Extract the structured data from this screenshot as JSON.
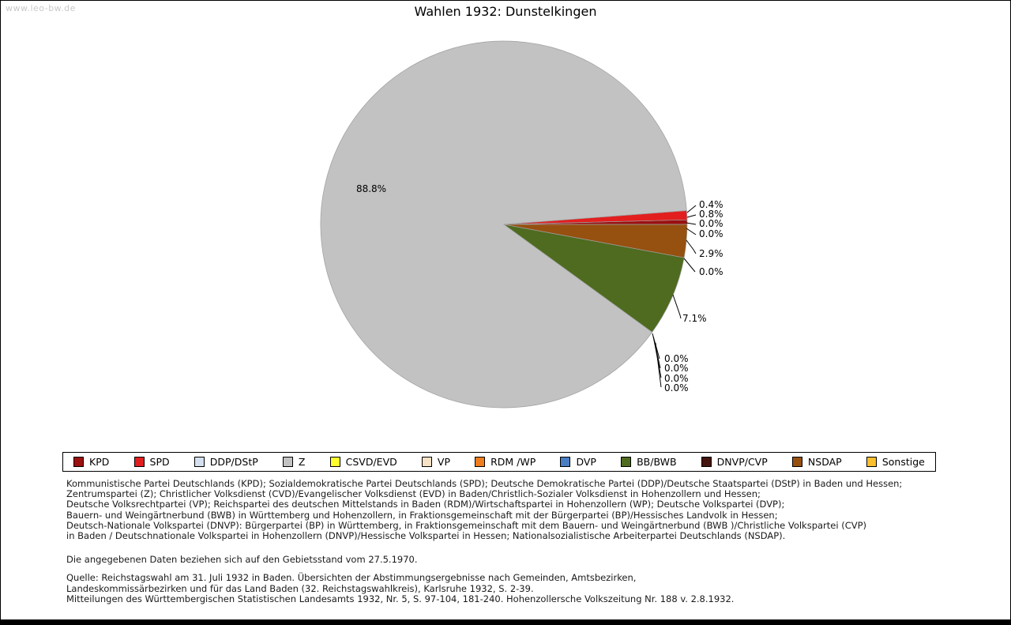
{
  "page": {
    "watermark": "www.leo-bw.de",
    "title": "Wahlen 1932: Dunstelkingen"
  },
  "chart_data": {
    "type": "pie",
    "title": "Wahlen 1932: Dunstelkingen",
    "unit": "percent of votes",
    "direction": "counterclockwise",
    "start_angle_deg": 0,
    "legend_position": "bottom",
    "slices": [
      {
        "party": "KPD",
        "value": 0.4,
        "label": "0.4%",
        "color": "#9b1010"
      },
      {
        "party": "SPD",
        "value": 0.8,
        "label": "0.8%",
        "color": "#e31e1e"
      },
      {
        "party": "DDP/DStP",
        "value": 0.0,
        "label": "0.0%",
        "color": "#d4e0f0"
      },
      {
        "party": "Z",
        "value": 88.8,
        "label": "88.8%",
        "color": "#c2c2c2"
      },
      {
        "party": "CSVD/EVD",
        "value": 0.0,
        "label": "0.0%",
        "color": "#ffff2e"
      },
      {
        "party": "VP",
        "value": 0.0,
        "label": "0.0%",
        "color": "#f8e2c6"
      },
      {
        "party": "RDM /WP",
        "value": 0.0,
        "label": "0.0%",
        "color": "#ee7d1e"
      },
      {
        "party": "DVP",
        "value": 0.0,
        "label": "0.0%",
        "color": "#4a7ec2"
      },
      {
        "party": "BB/BWB",
        "value": 7.1,
        "label": "7.1%",
        "color": "#4e6b1f"
      },
      {
        "party": "DNVP/CVP",
        "value": 0.0,
        "label": "0.0%",
        "color": "#45150f"
      },
      {
        "party": "NSDAP",
        "value": 2.9,
        "label": "2.9%",
        "color": "#96500f"
      },
      {
        "party": "Sonstige",
        "value": 0.0,
        "label": "0.0%",
        "color": "#fdbf2d"
      }
    ]
  },
  "footnotes": {
    "party_definitions": [
      "Kommunistische Partei Deutschlands (KPD); Sozialdemokratische Partei Deutschlands (SPD); Deutsche Demokratische Partei (DDP)/Deutsche Staatspartei (DStP) in Baden und Hessen;",
      "Zentrumspartei (Z); Christlicher Volksdienst (CVD)/Evangelischer Volksdienst (EVD) in Baden/Christlich-Sozialer Volksdienst in Hohenzollern und Hessen;",
      "Deutsche Volksrechtpartei (VP); Reichspartei des deutschen Mittelstands in Baden (RDM)/Wirtschaftspartei in Hohenzollern (WP); Deutsche Volkspartei (DVP);",
      "Bauern- und Weingärtnerbund (BWB) in Württemberg und Hohenzollern, in Fraktionsgemeinschaft mit der Bürgerpartei (BP)/Hessisches Landvolk in Hessen;",
      "Deutsch-Nationale Volkspartei (DNVP): Bürgerpartei (BP) in Württemberg, in Fraktionsgemeinschaft mit dem Bauern- und Weingärtnerbund (BWB )/Christliche Volkspartei (CVP)",
      "in Baden / Deutschnationale Volkspartei in Hohenzollern (DNVP)/Hessische Volkspartei in Hessen; Nationalsozialistische Arbeiterpartei Deutschlands (NSDAP)."
    ],
    "note": "Die angegebenen Daten beziehen sich auf den Gebietsstand vom 27.5.1970.",
    "source_lines": [
      "Quelle: Reichstagswahl am 31. Juli 1932 in Baden. Übersichten der Abstimmungsergebnisse nach Gemeinden, Amtsbezirken,",
      "Landeskommissärbezirken und für das Land Baden (32. Reichstagswahlkreis), Karlsruhe 1932, S. 2-39.",
      "Mitteilungen des Württembergischen Statistischen Landesamts 1932, Nr. 5, S. 97-104, 181-240. Hohenzollersche Volkszeitung Nr. 188 v. 2.8.1932."
    ]
  }
}
